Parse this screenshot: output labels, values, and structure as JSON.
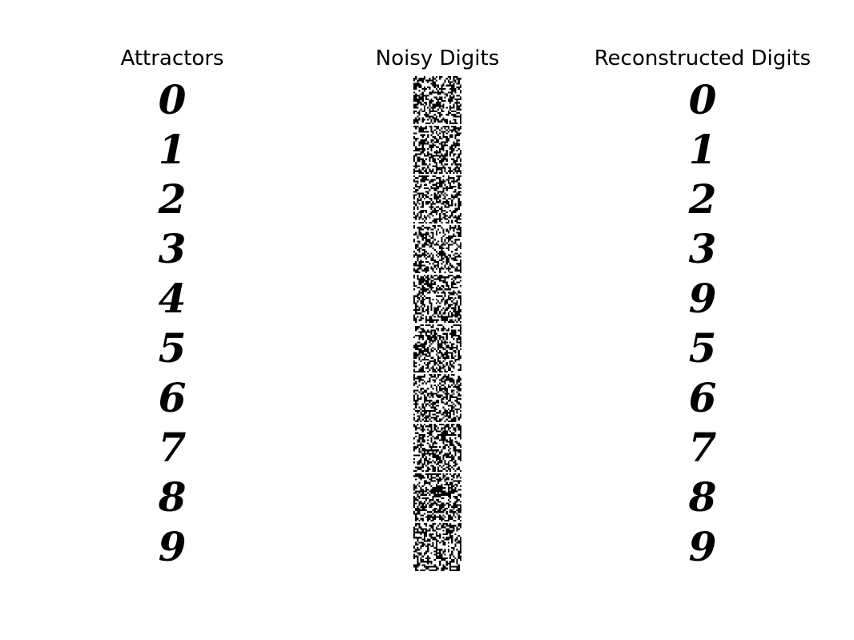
{
  "panels": {
    "attractors": {
      "title": "Attractors",
      "digits": [
        "0",
        "1",
        "2",
        "3",
        "4",
        "5",
        "6",
        "7",
        "8",
        "9"
      ]
    },
    "noisy": {
      "title": "Noisy Digits",
      "count": 10
    },
    "reconstructed": {
      "title": "Reconstructed Digits",
      "digits": [
        "0",
        "1",
        "2",
        "3",
        "9",
        "5",
        "6",
        "7",
        "8",
        "9"
      ]
    }
  }
}
